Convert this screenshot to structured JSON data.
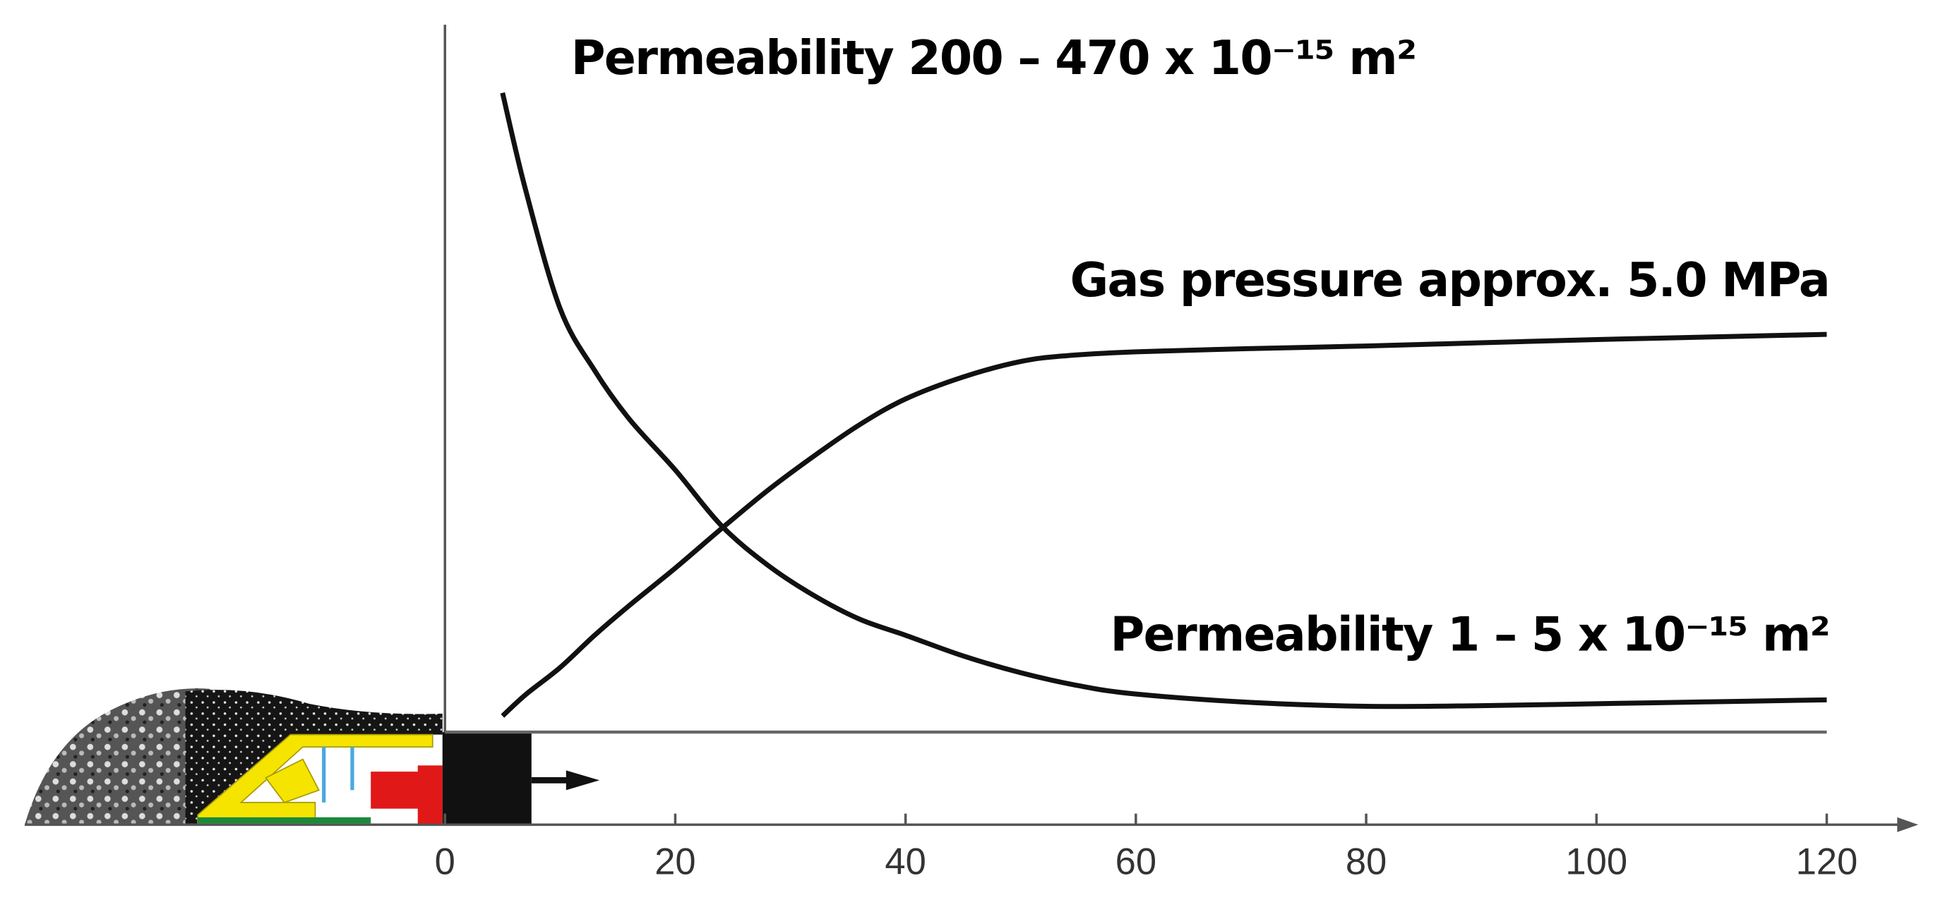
{
  "chart_data": {
    "type": "line",
    "xlim": [
      0,
      120
    ],
    "xticks": [
      0,
      20,
      40,
      60,
      80,
      100,
      120
    ],
    "ylim": [
      0,
      100
    ],
    "series": [
      {
        "color": "#111111",
        "x": [
          5,
          7,
          10,
          13,
          16,
          20,
          24,
          28,
          32,
          36,
          40,
          45,
          50,
          55,
          60,
          70,
          80,
          90,
          100,
          110,
          120
        ],
        "values": [
          99,
          84,
          65.6,
          56,
          48.5,
          40.6,
          32,
          25.9,
          21.2,
          17.5,
          15,
          11.8,
          9.2,
          7.2,
          5.9,
          4.6,
          4,
          4.1,
          4.4,
          4.7,
          5
        ]
      },
      {
        "color": "#111111",
        "x": [
          5,
          7,
          10,
          13,
          16,
          20,
          24,
          28,
          32,
          36,
          40,
          45,
          50,
          54,
          60,
          70,
          80,
          90,
          100,
          110,
          120
        ],
        "values": [
          2.5,
          5.8,
          10,
          15,
          19.6,
          25.4,
          31.5,
          37.4,
          42.7,
          47.6,
          51.6,
          55,
          57.4,
          58.3,
          58.9,
          59.4,
          59.8,
          60.3,
          60.8,
          61.2,
          61.6
        ]
      }
    ],
    "annotations": [
      {
        "text": "Permeability 200 – 470 x 10⁻¹⁵ m²"
      },
      {
        "text": "Gas pressure approx. 5.0 MPa"
      },
      {
        "text": "Permeability 1 – 5 x 10⁻¹⁵ m²"
      }
    ]
  }
}
